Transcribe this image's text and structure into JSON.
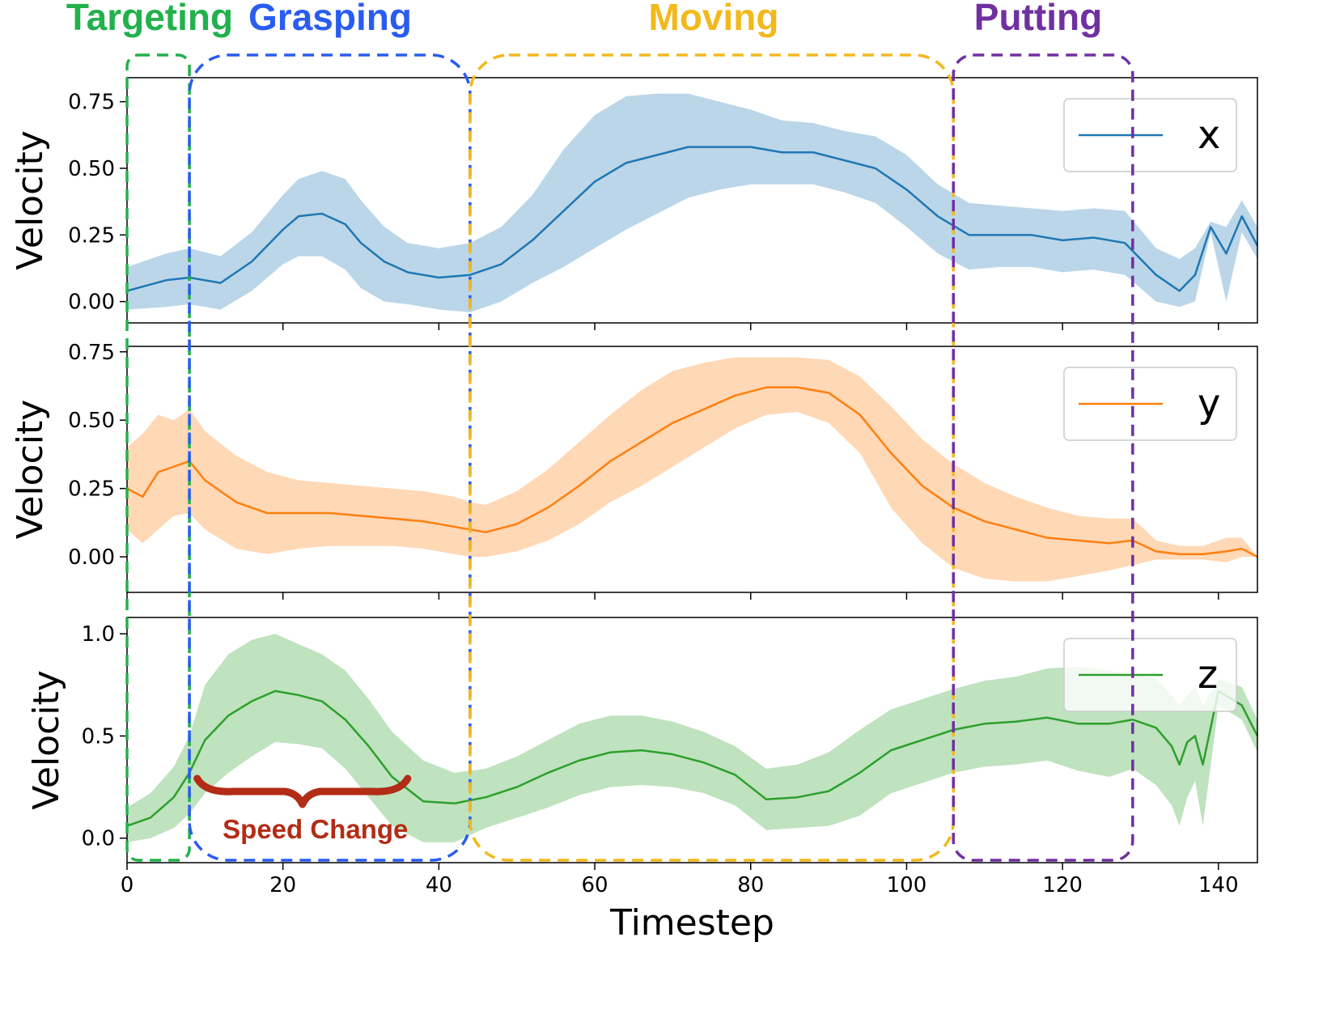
{
  "chart_data": {
    "type": "line",
    "xlabel": "Timestep",
    "xlim": [
      0,
      145
    ],
    "x_ticks": [
      "0",
      "20",
      "40",
      "60",
      "80",
      "100",
      "120",
      "140"
    ],
    "phases": [
      {
        "name": "Targeting",
        "start": 0,
        "end": 8,
        "color": "#22b14c"
      },
      {
        "name": "Grasping",
        "start": 8,
        "end": 44,
        "color": "#2a5cf0"
      },
      {
        "name": "Moving",
        "start": 44,
        "end": 106,
        "color": "#f2b81d"
      },
      {
        "name": "Putting",
        "start": 106,
        "end": 129,
        "color": "#7030a0"
      }
    ],
    "annotation": {
      "text": "Speed Change",
      "x_start": 9,
      "x_end": 36,
      "color": "#b22c16"
    },
    "panels": [
      {
        "series_name": "x",
        "color": "#1f77b4",
        "ylabel": "Velocity",
        "ylim": [
          -0.08,
          0.84
        ],
        "y_ticks": [
          "0.00",
          "0.25",
          "0.50",
          "0.75"
        ],
        "y_tick_values": [
          0,
          0.25,
          0.5,
          0.75
        ],
        "x": [
          0,
          5,
          8,
          12,
          16,
          20,
          22,
          25,
          28,
          30,
          33,
          36,
          40,
          44,
          48,
          52,
          56,
          60,
          64,
          68,
          72,
          76,
          80,
          84,
          88,
          92,
          96,
          100,
          104,
          108,
          112,
          116,
          120,
          124,
          128,
          132,
          135,
          137,
          139,
          141,
          143,
          145
        ],
        "mean": [
          0.04,
          0.08,
          0.09,
          0.07,
          0.15,
          0.27,
          0.32,
          0.33,
          0.29,
          0.22,
          0.15,
          0.11,
          0.09,
          0.1,
          0.14,
          0.23,
          0.34,
          0.45,
          0.52,
          0.55,
          0.58,
          0.58,
          0.58,
          0.56,
          0.56,
          0.53,
          0.5,
          0.42,
          0.32,
          0.25,
          0.25,
          0.25,
          0.23,
          0.24,
          0.22,
          0.1,
          0.04,
          0.1,
          0.28,
          0.18,
          0.32,
          0.21
        ],
        "upper": [
          0.13,
          0.18,
          0.2,
          0.17,
          0.26,
          0.4,
          0.46,
          0.49,
          0.46,
          0.38,
          0.28,
          0.22,
          0.2,
          0.22,
          0.28,
          0.4,
          0.57,
          0.7,
          0.77,
          0.78,
          0.78,
          0.75,
          0.72,
          0.68,
          0.67,
          0.64,
          0.62,
          0.55,
          0.44,
          0.37,
          0.36,
          0.35,
          0.34,
          0.35,
          0.34,
          0.2,
          0.16,
          0.2,
          0.3,
          0.28,
          0.38,
          0.28
        ],
        "lower": [
          -0.03,
          -0.02,
          -0.01,
          -0.03,
          0.04,
          0.14,
          0.17,
          0.17,
          0.12,
          0.05,
          0.0,
          -0.01,
          -0.03,
          -0.04,
          0.0,
          0.07,
          0.13,
          0.2,
          0.27,
          0.33,
          0.39,
          0.42,
          0.44,
          0.44,
          0.44,
          0.41,
          0.37,
          0.28,
          0.18,
          0.12,
          0.13,
          0.13,
          0.11,
          0.12,
          0.1,
          0.0,
          -0.02,
          0.0,
          0.26,
          0.0,
          0.26,
          0.16
        ]
      },
      {
        "series_name": "y",
        "color": "#ff7f0e",
        "ylabel": "Velocity",
        "ylim": [
          -0.13,
          0.77
        ],
        "y_ticks": [
          "0.00",
          "0.25",
          "0.50",
          "0.75"
        ],
        "y_tick_values": [
          0,
          0.25,
          0.5,
          0.75
        ],
        "x": [
          0,
          2,
          4,
          6,
          8,
          10,
          14,
          18,
          22,
          26,
          30,
          34,
          38,
          42,
          44,
          46,
          50,
          54,
          58,
          62,
          66,
          70,
          74,
          78,
          82,
          86,
          90,
          94,
          98,
          102,
          106,
          110,
          114,
          118,
          122,
          126,
          129,
          132,
          135,
          138,
          141,
          143,
          145
        ],
        "mean": [
          0.25,
          0.22,
          0.31,
          0.33,
          0.35,
          0.28,
          0.2,
          0.16,
          0.16,
          0.16,
          0.15,
          0.14,
          0.13,
          0.11,
          0.1,
          0.09,
          0.12,
          0.18,
          0.26,
          0.35,
          0.42,
          0.49,
          0.54,
          0.59,
          0.62,
          0.62,
          0.6,
          0.52,
          0.38,
          0.26,
          0.18,
          0.13,
          0.1,
          0.07,
          0.06,
          0.05,
          0.06,
          0.02,
          0.01,
          0.01,
          0.02,
          0.03,
          0.0
        ],
        "upper": [
          0.4,
          0.45,
          0.52,
          0.5,
          0.54,
          0.46,
          0.37,
          0.31,
          0.28,
          0.27,
          0.26,
          0.25,
          0.24,
          0.22,
          0.2,
          0.19,
          0.24,
          0.32,
          0.42,
          0.52,
          0.61,
          0.68,
          0.71,
          0.73,
          0.73,
          0.73,
          0.72,
          0.66,
          0.55,
          0.43,
          0.34,
          0.27,
          0.22,
          0.18,
          0.15,
          0.14,
          0.14,
          0.06,
          0.04,
          0.04,
          0.07,
          0.07,
          0.0
        ],
        "lower": [
          0.1,
          0.05,
          0.1,
          0.15,
          0.16,
          0.1,
          0.03,
          0.01,
          0.03,
          0.04,
          0.04,
          0.04,
          0.03,
          0.01,
          0.0,
          0.0,
          0.02,
          0.06,
          0.12,
          0.2,
          0.26,
          0.33,
          0.4,
          0.47,
          0.52,
          0.53,
          0.49,
          0.38,
          0.18,
          0.05,
          -0.04,
          -0.08,
          -0.09,
          -0.09,
          -0.07,
          -0.05,
          -0.03,
          -0.01,
          -0.01,
          -0.01,
          -0.02,
          0.0,
          0.0
        ]
      },
      {
        "series_name": "z",
        "color": "#2ca02c",
        "ylabel": "Velocity",
        "ylim": [
          -0.12,
          1.08
        ],
        "y_ticks": [
          "0.0",
          "0.5",
          "1.0"
        ],
        "y_tick_values": [
          0,
          0.5,
          1.0
        ],
        "x": [
          0,
          3,
          6,
          8,
          10,
          13,
          16,
          19,
          22,
          25,
          28,
          31,
          34,
          38,
          42,
          46,
          50,
          54,
          58,
          62,
          66,
          70,
          74,
          78,
          82,
          86,
          90,
          94,
          98,
          102,
          106,
          110,
          114,
          118,
          122,
          126,
          129,
          132,
          134,
          135,
          136,
          137,
          138,
          140,
          143,
          145
        ],
        "mean": [
          0.06,
          0.1,
          0.2,
          0.32,
          0.48,
          0.6,
          0.67,
          0.72,
          0.7,
          0.67,
          0.58,
          0.45,
          0.3,
          0.18,
          0.17,
          0.2,
          0.25,
          0.32,
          0.38,
          0.42,
          0.43,
          0.41,
          0.37,
          0.31,
          0.19,
          0.2,
          0.23,
          0.32,
          0.43,
          0.48,
          0.53,
          0.56,
          0.57,
          0.59,
          0.56,
          0.56,
          0.58,
          0.54,
          0.45,
          0.36,
          0.47,
          0.5,
          0.36,
          0.72,
          0.65,
          0.5
        ],
        "upper": [
          0.15,
          0.22,
          0.35,
          0.5,
          0.75,
          0.9,
          0.97,
          1.0,
          0.95,
          0.9,
          0.82,
          0.68,
          0.52,
          0.38,
          0.32,
          0.34,
          0.4,
          0.48,
          0.56,
          0.6,
          0.6,
          0.57,
          0.52,
          0.45,
          0.34,
          0.36,
          0.42,
          0.53,
          0.63,
          0.68,
          0.73,
          0.77,
          0.79,
          0.83,
          0.84,
          0.82,
          0.8,
          0.78,
          0.7,
          0.65,
          0.7,
          0.74,
          0.65,
          0.78,
          0.74,
          0.58
        ],
        "lower": [
          -0.02,
          0.0,
          0.05,
          0.12,
          0.22,
          0.32,
          0.4,
          0.47,
          0.46,
          0.44,
          0.34,
          0.2,
          0.06,
          -0.02,
          -0.02,
          0.05,
          0.1,
          0.15,
          0.21,
          0.25,
          0.26,
          0.25,
          0.22,
          0.16,
          0.04,
          0.05,
          0.06,
          0.11,
          0.22,
          0.27,
          0.32,
          0.35,
          0.36,
          0.38,
          0.33,
          0.3,
          0.34,
          0.26,
          0.16,
          0.06,
          0.2,
          0.28,
          0.06,
          0.65,
          0.58,
          0.42
        ]
      }
    ]
  }
}
